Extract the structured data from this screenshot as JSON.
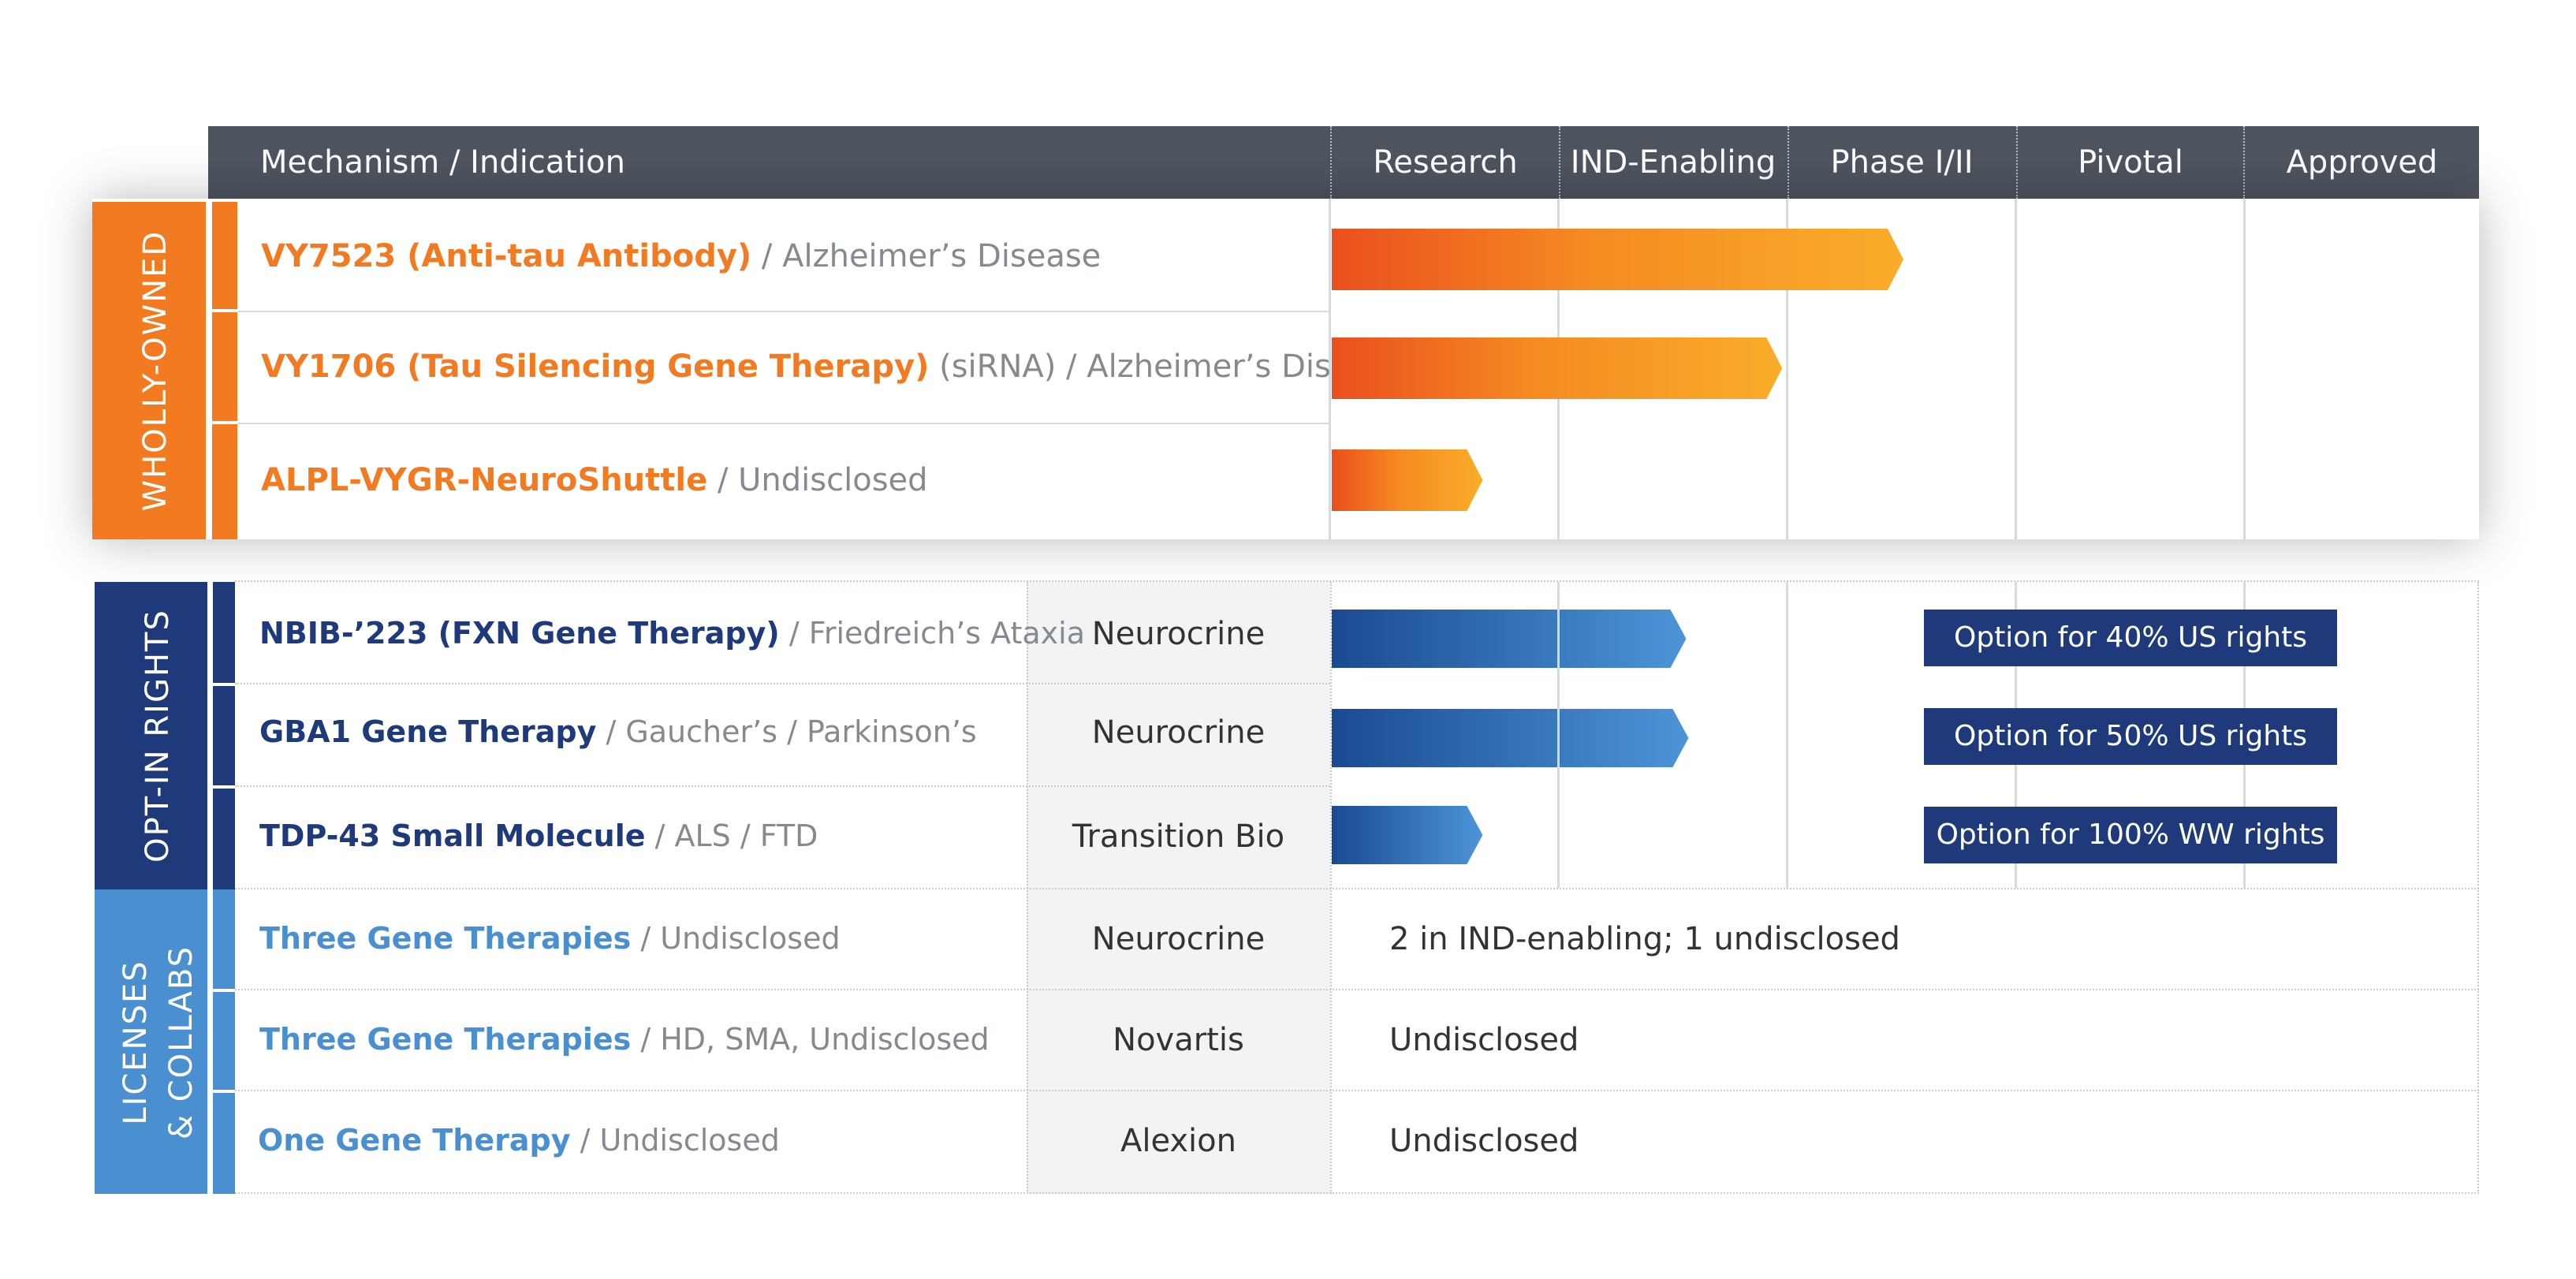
{
  "header": {
    "title": "Mechanism / Indication",
    "phases": [
      "Research",
      "IND-Enabling",
      "Phase I/II",
      "Pivotal",
      "Approved"
    ]
  },
  "sections": {
    "wholly_owned": "WHOLLY-OWNED",
    "opt_in": "OPT-IN RIGHTS",
    "licenses_line1": "LICENSES",
    "licenses_line2": "& COLLABS"
  },
  "wholly_owned_rows": [
    {
      "name": "VY7523 (Anti-tau Antibody)",
      "detail": " / Alzheimer’s Disease",
      "progress": 2.5
    },
    {
      "name": "VY1706 (Tau Silencing Gene Therapy)",
      "detail": " (siRNA) / Alzheimer’s Disease",
      "progress": 1.97
    },
    {
      "name": "ALPL-VYGR-NeuroShuttle",
      "detail": " / Undisclosed",
      "progress": 0.66
    }
  ],
  "opt_in_rows": [
    {
      "name": "NBIB-’223 (FXN Gene Therapy)",
      "detail": " / Friedreich’s Ataxia",
      "partner": "Neurocrine",
      "progress": 1.55,
      "option": "Option for 40% US rights"
    },
    {
      "name": "GBA1 Gene Therapy",
      "detail": " / Gaucher’s / Parkinson’s",
      "partner": "Neurocrine",
      "progress": 1.56,
      "option": "Option for 50% US rights"
    },
    {
      "name": "TDP-43 Small Molecule",
      "detail": "  / ALS / FTD",
      "partner": "Transition Bio",
      "progress": 0.66,
      "option": "Option for 100% WW rights"
    }
  ],
  "license_rows": [
    {
      "name": "Three Gene Therapies",
      "detail": " / Undisclosed",
      "partner": "Neurocrine",
      "status": "2 in IND-enabling; 1 undisclosed"
    },
    {
      "name": "Three Gene Therapies",
      "detail": " / HD, SMA, Undisclosed",
      "partner": "Novartis",
      "status": "Undisclosed"
    },
    {
      "name": "One Gene Therapy",
      "detail": " / Undisclosed",
      "partner": "Alexion",
      "status": "Undisclosed"
    }
  ],
  "colors": {
    "orange": "#f27a21",
    "navy": "#1f3a7a",
    "light_blue": "#4a8fd0",
    "header": "#4e555f"
  }
}
